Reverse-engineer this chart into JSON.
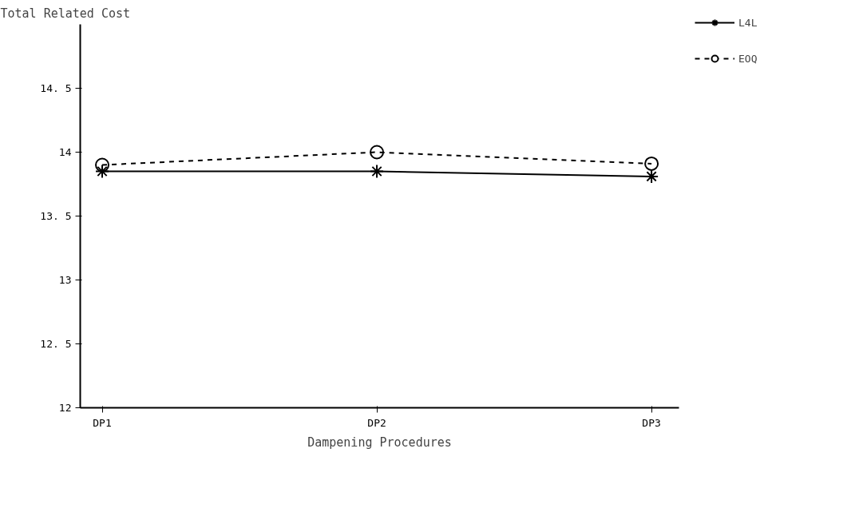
{
  "chart_data": {
    "type": "line",
    "ylabel": "Total Related Cost",
    "xlabel": "Dampening Procedures",
    "categories": [
      "DP1",
      "DP2",
      "DP3"
    ],
    "series": [
      {
        "name": "L4L",
        "color": "#000000",
        "marker": "cross",
        "line_style": "solid",
        "values": [
          13.85,
          13.85,
          13.81
        ]
      },
      {
        "name": "EOQ",
        "color": "#000000",
        "marker": "circle",
        "line_style": "dashed",
        "values": [
          13.9,
          14.0,
          13.91
        ]
      }
    ],
    "ylim": [
      12,
      15
    ],
    "yticks": [
      12,
      {
        "value": 12.5,
        "label": "12. 5"
      },
      13,
      {
        "value": 13.5,
        "label": "13. 5"
      },
      14,
      {
        "value": 14.5,
        "label": "14. 5"
      }
    ],
    "grid": false,
    "legend": "right"
  }
}
